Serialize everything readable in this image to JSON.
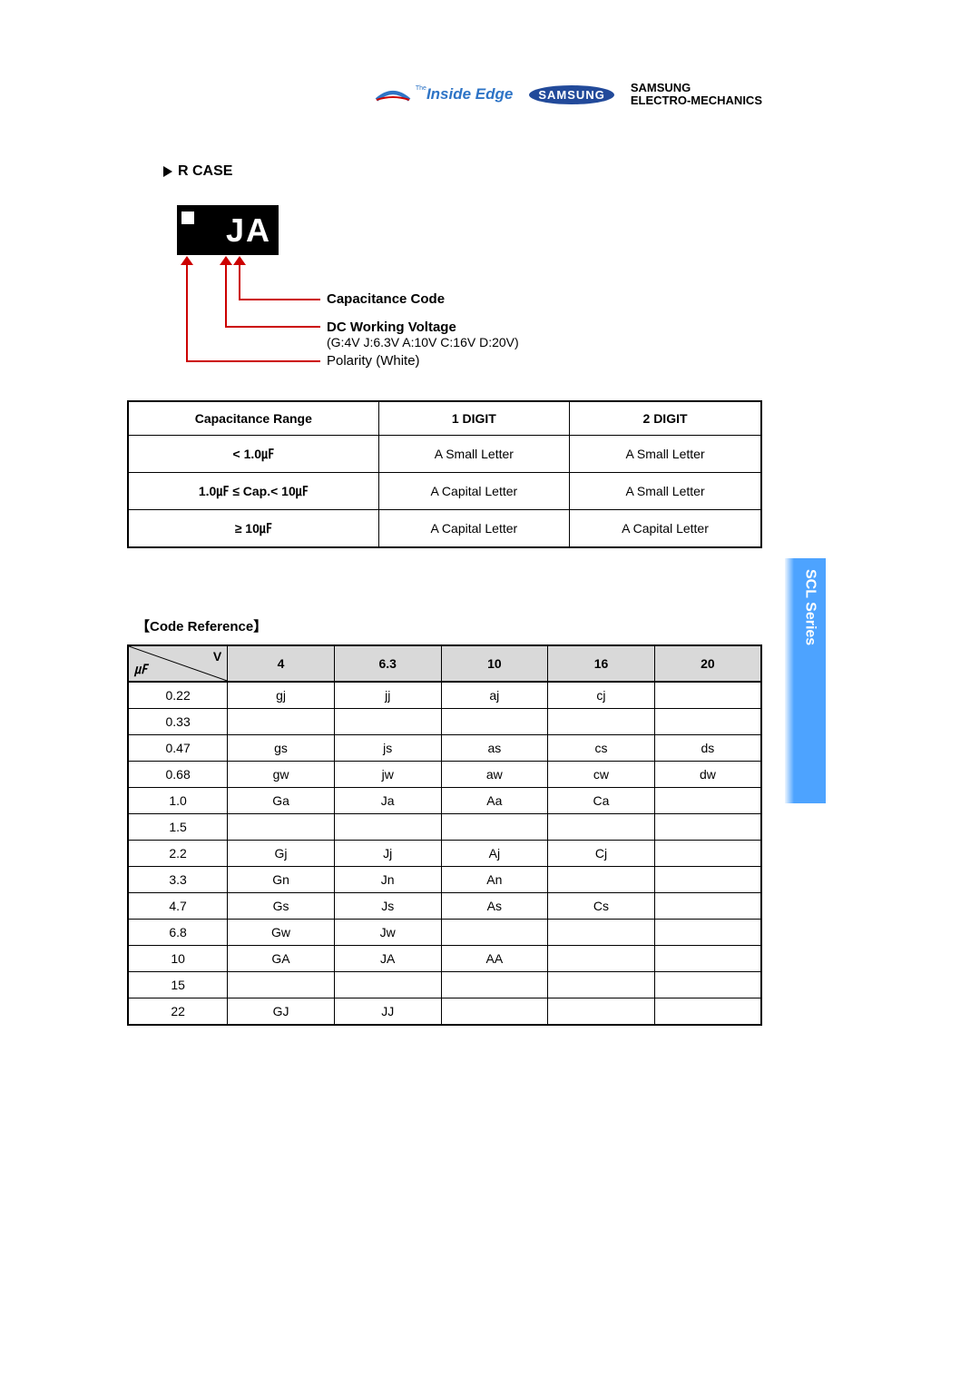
{
  "logos": {
    "inside_edge_prefix": "The",
    "inside_edge": "Inside Edge",
    "samsung": "SAMSUNG",
    "samsung_em_line1": "SAMSUNG",
    "samsung_em_line2": "ELECTRO-MECHANICS"
  },
  "side_tab": "SCL Series",
  "section": {
    "heading": "R CASE",
    "chip_text": "JA",
    "callout_capacitance_code": "Capacitance  Code",
    "callout_dc_voltage": "DC  Working  Voltage",
    "callout_dc_voltage_detail": "(G:4V   J:6.3V   A:10V    C:16V    D:20V)",
    "callout_polarity_bold": "Polarity",
    "callout_polarity_detail": "  (White)"
  },
  "cap_range_table": {
    "headers": [
      "Capacitance  Range",
      "1  DIGIT",
      "2  DIGIT"
    ],
    "rows": [
      [
        "<  1.0㎌",
        "A  Small  Letter",
        "A  Small  Letter"
      ],
      [
        "1.0㎌ ≤  Cap.<  10㎌",
        "A  Capital  Letter",
        "A  Small  Letter"
      ],
      [
        "≥  10㎌",
        "A  Capital  Letter",
        "A  Capital  Letter"
      ]
    ],
    "border_color": "#000000"
  },
  "code_reference": {
    "heading": "【Code  Reference】",
    "diag_top": "V",
    "diag_bottom": "㎌",
    "voltages": [
      "4",
      "6.3",
      "10",
      "16",
      "20"
    ],
    "capacitances": [
      "0.22",
      "0.33",
      "0.47",
      "0.68",
      "1.0",
      "1.5",
      "2.2",
      "3.3",
      "4.7",
      "6.8",
      "10",
      "15",
      "22"
    ],
    "cells": [
      [
        "gj",
        "jj",
        "aj",
        "cj",
        ""
      ],
      [
        "",
        "",
        "",
        "",
        ""
      ],
      [
        "gs",
        "js",
        "as",
        "cs",
        "ds"
      ],
      [
        "gw",
        "jw",
        "aw",
        "cw",
        "dw"
      ],
      [
        "Ga",
        "Ja",
        "Aa",
        "Ca",
        ""
      ],
      [
        "",
        "",
        "",
        "",
        ""
      ],
      [
        "Gj",
        "Jj",
        "Aj",
        "Cj",
        ""
      ],
      [
        "Gn",
        "Jn",
        "An",
        "",
        ""
      ],
      [
        "Gs",
        "Js",
        "As",
        "Cs",
        ""
      ],
      [
        "Gw",
        "Jw",
        "",
        "",
        ""
      ],
      [
        "GA",
        "JA",
        "AA",
        "",
        ""
      ],
      [
        "",
        "",
        "",
        "",
        ""
      ],
      [
        "GJ",
        "JJ",
        "",
        "",
        ""
      ]
    ],
    "header_bg": "#d9d9d9",
    "border_color": "#000000"
  },
  "colors": {
    "callout_line": "#cc0000",
    "side_tab_bg": "#4da3ff",
    "samsung_blue": "#224a9a",
    "inside_edge_blue": "#2e74c6"
  }
}
